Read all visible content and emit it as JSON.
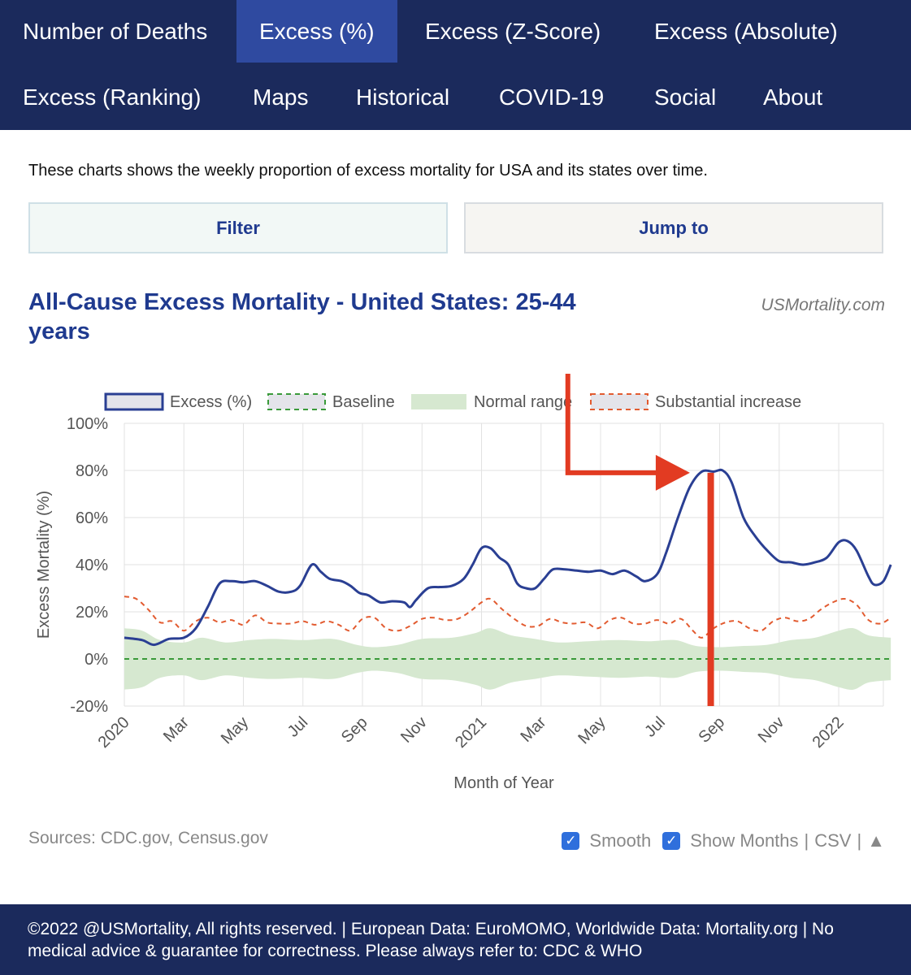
{
  "nav": {
    "row1": [
      "Number of Deaths",
      "Excess (%)",
      "Excess (Z-Score)",
      "Excess (Absolute)"
    ],
    "row2": [
      "Excess (Ranking)",
      "Maps",
      "Historical",
      "COVID-19",
      "Social",
      "About"
    ],
    "active": "Excess (%)"
  },
  "intro": "These charts shows the weekly proportion of excess mortality for USA and its states over time.",
  "buttons": {
    "filter": "Filter",
    "jump": "Jump to"
  },
  "chart_header": {
    "title": "All-Cause Excess Mortality - United States: 25-44 years",
    "brand": "USMortality.com"
  },
  "chart_data": {
    "type": "line",
    "title": "All-Cause Excess Mortality - United States: 25-44 years",
    "xlabel": "Month of Year",
    "ylabel": "Excess Mortality (%)",
    "ylim": [
      -20,
      100
    ],
    "yticks": [
      100,
      80,
      60,
      40,
      20,
      0,
      -20
    ],
    "ytick_labels": [
      "100%",
      "80%",
      "60%",
      "40%",
      "20%",
      "0%",
      "-20%"
    ],
    "xlim": [
      0,
      25.5
    ],
    "xticks": [
      0,
      2,
      4,
      6,
      8,
      10,
      12,
      14,
      16,
      18,
      20,
      22,
      24
    ],
    "xtick_labels": [
      "2020",
      "Mar",
      "May",
      "Jul",
      "Sep",
      "Nov",
      "2021",
      "Mar",
      "May",
      "Jul",
      "Sep",
      "Nov",
      "2022"
    ],
    "legend": [
      "Excess (%)",
      "Baseline",
      "Normal range",
      "Substantial increase"
    ],
    "legend_position": "top",
    "grid": true,
    "series": [
      {
        "name": "Excess (%)",
        "color": "#2a3f93",
        "points": [
          [
            0,
            9
          ],
          [
            0.6,
            8
          ],
          [
            1.0,
            6
          ],
          [
            1.5,
            8.5
          ],
          [
            2.0,
            9
          ],
          [
            2.4,
            13
          ],
          [
            2.8,
            22
          ],
          [
            3.2,
            32
          ],
          [
            3.6,
            33
          ],
          [
            4.0,
            32.5
          ],
          [
            4.4,
            33
          ],
          [
            4.8,
            31
          ],
          [
            5.2,
            28.5
          ],
          [
            5.6,
            28.5
          ],
          [
            5.9,
            31
          ],
          [
            6.3,
            40
          ],
          [
            6.6,
            37
          ],
          [
            6.9,
            34
          ],
          [
            7.3,
            33
          ],
          [
            7.6,
            31
          ],
          [
            7.9,
            28
          ],
          [
            8.2,
            27
          ],
          [
            8.6,
            24
          ],
          [
            9.0,
            24.5
          ],
          [
            9.4,
            24
          ],
          [
            9.6,
            22
          ],
          [
            9.8,
            25
          ],
          [
            10.2,
            30
          ],
          [
            10.6,
            30.5
          ],
          [
            11.0,
            31
          ],
          [
            11.4,
            34
          ],
          [
            11.7,
            40
          ],
          [
            12.0,
            47
          ],
          [
            12.3,
            47
          ],
          [
            12.6,
            43
          ],
          [
            12.9,
            40
          ],
          [
            13.2,
            32
          ],
          [
            13.5,
            30
          ],
          [
            13.8,
            30
          ],
          [
            14.1,
            34
          ],
          [
            14.4,
            38
          ],
          [
            14.8,
            38
          ],
          [
            15.2,
            37.5
          ],
          [
            15.6,
            37
          ],
          [
            16.0,
            37.5
          ],
          [
            16.4,
            36
          ],
          [
            16.8,
            37.5
          ],
          [
            17.2,
            35
          ],
          [
            17.5,
            33
          ],
          [
            17.9,
            36
          ],
          [
            18.2,
            45
          ],
          [
            18.6,
            60
          ],
          [
            19.0,
            73
          ],
          [
            19.4,
            79.5
          ],
          [
            19.8,
            79.5
          ],
          [
            20.1,
            80
          ],
          [
            20.4,
            75
          ],
          [
            20.8,
            60
          ],
          [
            21.2,
            52
          ],
          [
            21.6,
            46
          ],
          [
            22.0,
            41.5
          ],
          [
            22.4,
            41
          ],
          [
            22.8,
            40
          ],
          [
            23.2,
            41
          ],
          [
            23.6,
            43
          ],
          [
            24.0,
            49.5
          ],
          [
            24.3,
            50
          ],
          [
            24.6,
            46
          ],
          [
            25.0,
            35
          ],
          [
            25.2,
            31.5
          ],
          [
            25.5,
            33
          ],
          [
            25.75,
            40
          ]
        ]
      },
      {
        "name": "Substantial increase",
        "color": "#e25b30",
        "points": [
          [
            0,
            26.5
          ],
          [
            0.4,
            25.5
          ],
          [
            0.8,
            21
          ],
          [
            1.2,
            15.5
          ],
          [
            1.6,
            16
          ],
          [
            2.0,
            12
          ],
          [
            2.4,
            16
          ],
          [
            2.8,
            17.5
          ],
          [
            3.2,
            15.5
          ],
          [
            3.6,
            16.5
          ],
          [
            4.0,
            14.5
          ],
          [
            4.4,
            18.5
          ],
          [
            4.8,
            15.5
          ],
          [
            5.2,
            15
          ],
          [
            5.6,
            15
          ],
          [
            6.0,
            16
          ],
          [
            6.4,
            14.5
          ],
          [
            6.8,
            16
          ],
          [
            7.2,
            14.5
          ],
          [
            7.6,
            12
          ],
          [
            8.0,
            17
          ],
          [
            8.4,
            17.5
          ],
          [
            8.8,
            13
          ],
          [
            9.2,
            12
          ],
          [
            9.6,
            14
          ],
          [
            10.0,
            17
          ],
          [
            10.4,
            17.5
          ],
          [
            10.8,
            16.5
          ],
          [
            11.2,
            17
          ],
          [
            11.6,
            20
          ],
          [
            12.0,
            24
          ],
          [
            12.3,
            25.5
          ],
          [
            12.7,
            21
          ],
          [
            13.1,
            17
          ],
          [
            13.5,
            14
          ],
          [
            13.9,
            14
          ],
          [
            14.3,
            17
          ],
          [
            14.7,
            15.5
          ],
          [
            15.1,
            15
          ],
          [
            15.5,
            15.5
          ],
          [
            15.9,
            13
          ],
          [
            16.3,
            16.5
          ],
          [
            16.7,
            17.5
          ],
          [
            17.1,
            15
          ],
          [
            17.5,
            15
          ],
          [
            17.9,
            16.5
          ],
          [
            18.3,
            15
          ],
          [
            18.7,
            17
          ],
          [
            19.1,
            12
          ],
          [
            19.4,
            9
          ],
          [
            19.8,
            13
          ],
          [
            20.2,
            15.5
          ],
          [
            20.6,
            16
          ],
          [
            21.0,
            13
          ],
          [
            21.4,
            12
          ],
          [
            21.8,
            16
          ],
          [
            22.2,
            17.5
          ],
          [
            22.6,
            16
          ],
          [
            23.0,
            17
          ],
          [
            23.4,
            21
          ],
          [
            23.8,
            24
          ],
          [
            24.2,
            25.5
          ],
          [
            24.6,
            23
          ],
          [
            25.0,
            16.5
          ],
          [
            25.4,
            15
          ],
          [
            25.75,
            17.5
          ]
        ]
      },
      {
        "name": "Baseline",
        "color": "#3a9a3a",
        "points": [
          [
            0,
            0
          ],
          [
            25.75,
            0
          ]
        ]
      }
    ],
    "normal_range_halfwidth": {
      "color": "#d6e8d0",
      "points": [
        [
          0,
          13
        ],
        [
          0.6,
          12
        ],
        [
          1.2,
          8
        ],
        [
          2.0,
          7
        ],
        [
          2.6,
          9
        ],
        [
          3.4,
          7
        ],
        [
          4.2,
          8
        ],
        [
          5.0,
          8.5
        ],
        [
          6.0,
          8
        ],
        [
          7.0,
          8.5
        ],
        [
          7.8,
          6
        ],
        [
          8.4,
          5
        ],
        [
          9.2,
          6
        ],
        [
          10.0,
          8.5
        ],
        [
          11.0,
          9
        ],
        [
          11.8,
          11
        ],
        [
          12.3,
          13
        ],
        [
          13.0,
          10
        ],
        [
          13.8,
          8.5
        ],
        [
          14.6,
          7
        ],
        [
          15.6,
          7.5
        ],
        [
          16.6,
          8
        ],
        [
          17.6,
          7.5
        ],
        [
          18.5,
          8
        ],
        [
          19.2,
          5.5
        ],
        [
          20.0,
          5
        ],
        [
          20.8,
          5.5
        ],
        [
          21.6,
          6
        ],
        [
          22.4,
          8
        ],
        [
          23.2,
          9
        ],
        [
          24.0,
          12
        ],
        [
          24.5,
          13
        ],
        [
          25.0,
          10
        ],
        [
          25.75,
          9
        ]
      ]
    },
    "annotation": {
      "description": "red arrow pointing to peak, red vertical marker",
      "color": "#e23b22",
      "arrow_from": [
        14.9,
        110
      ],
      "arrow_corner": [
        14.9,
        79
      ],
      "arrow_to": [
        19.0,
        79
      ],
      "marker_x": 19.7,
      "marker_range": [
        -20,
        79
      ]
    }
  },
  "sources": "Sources: CDC.gov, Census.gov",
  "controls": {
    "smooth": "Smooth",
    "show_months": "Show Months",
    "separator": "|",
    "csv": "CSV",
    "up_icon": "▲"
  },
  "footer": "©2022 @USMortality, All rights reserved. | European Data: EuroMOMO, Worldwide Data: Mortality.org | No medical advice & guarantee for correctness. Please always refer to: CDC & WHO",
  "colors": {
    "nav_bg": "#1b2a5c",
    "nav_active": "#2f4aa0",
    "accent": "#1f3a8f"
  }
}
